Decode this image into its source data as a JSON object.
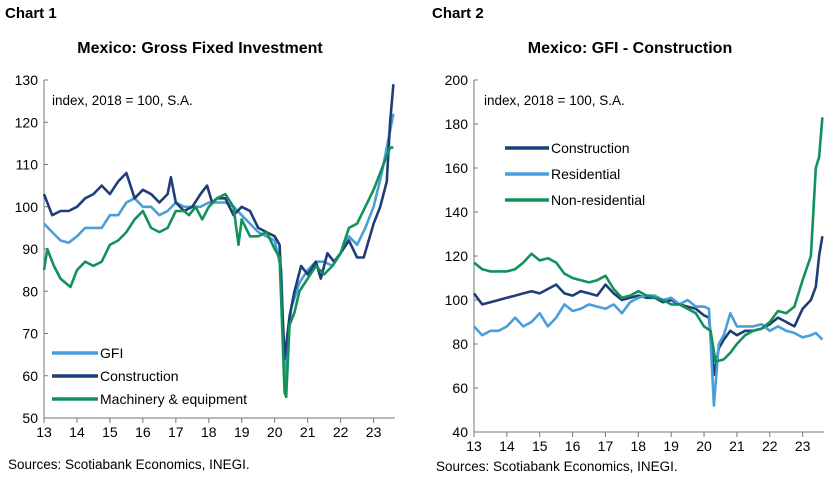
{
  "colors": {
    "light_blue": "#4a9fd8",
    "navy": "#1f3e78",
    "green": "#12925a"
  },
  "chart_data": [
    {
      "type": "line",
      "label": "Chart 1",
      "title": "Mexico: Gross Fixed Investment",
      "annotation": "index, 2018 = 100, S.A.",
      "source": "Sources: Scotiabank Economics, INEGI.",
      "xlim": [
        13,
        23.65
      ],
      "ylim": [
        50,
        130
      ],
      "yticks": [
        50,
        60,
        70,
        80,
        90,
        100,
        110,
        120,
        130
      ],
      "xticks": [
        "13",
        "14",
        "15",
        "16",
        "17",
        "18",
        "19",
        "20",
        "21",
        "22",
        "23"
      ],
      "legend": "bottom-left",
      "grid": false,
      "series": [
        {
          "name": "GFI",
          "color": "#4a9fd8",
          "x": [
            13,
            13.25,
            13.5,
            13.75,
            14,
            14.25,
            14.5,
            14.75,
            15,
            15.25,
            15.5,
            15.75,
            16,
            16.25,
            16.5,
            16.75,
            17,
            17.25,
            17.5,
            17.75,
            18,
            18.25,
            18.5,
            18.75,
            19,
            19.25,
            19.5,
            19.75,
            20,
            20.2,
            20.3,
            20.4,
            20.5,
            20.75,
            21,
            21.25,
            21.5,
            21.75,
            22,
            22.25,
            22.5,
            22.75,
            23,
            23.25,
            23.5,
            23.6
          ],
          "y": [
            96,
            94,
            92,
            91.5,
            93,
            95,
            95,
            95,
            98,
            98,
            101,
            102,
            100,
            100,
            98,
            99,
            101,
            100,
            100,
            100,
            101,
            101,
            101,
            100,
            98,
            96,
            94,
            93,
            92,
            85,
            57,
            68,
            76,
            82,
            85,
            87,
            87,
            86,
            89,
            93,
            91,
            95,
            100,
            108,
            118,
            122
          ]
        },
        {
          "name": "Construction",
          "color": "#1f3e78",
          "x": [
            13,
            13.25,
            13.5,
            13.75,
            14,
            14.25,
            14.5,
            14.75,
            15,
            15.25,
            15.5,
            15.75,
            16,
            16.25,
            16.5,
            16.75,
            16.85,
            17,
            17.25,
            17.5,
            17.75,
            17.95,
            18.1,
            18.25,
            18.5,
            18.75,
            19,
            19.25,
            19.5,
            19.75,
            20,
            20.15,
            20.3,
            20.45,
            20.6,
            20.8,
            21,
            21.25,
            21.4,
            21.6,
            21.8,
            22,
            22.25,
            22.5,
            22.7,
            23,
            23.2,
            23.4,
            23.5,
            23.6
          ],
          "y": [
            103,
            98,
            99,
            99,
            100,
            102,
            103,
            105,
            103,
            106,
            108,
            102,
            104,
            103,
            101,
            103,
            107,
            101,
            99,
            100,
            103,
            105,
            101,
            102,
            102,
            98,
            100,
            99,
            95,
            94,
            93,
            91,
            64,
            74,
            80,
            86,
            84,
            87,
            83,
            89,
            87,
            89,
            92,
            88,
            88,
            96,
            100,
            106,
            120,
            129
          ]
        },
        {
          "name": "Machinery & equipment",
          "color": "#12925a",
          "x": [
            13,
            13.1,
            13.3,
            13.5,
            13.8,
            14,
            14.25,
            14.5,
            14.75,
            15,
            15.25,
            15.5,
            15.75,
            16,
            16.25,
            16.5,
            16.75,
            17,
            17.25,
            17.4,
            17.6,
            17.8,
            18,
            18.25,
            18.5,
            18.75,
            18.9,
            19,
            19.25,
            19.5,
            19.75,
            20,
            20.15,
            20.3,
            20.35,
            20.45,
            20.6,
            20.75,
            21,
            21.25,
            21.5,
            21.75,
            22,
            22.25,
            22.5,
            22.75,
            23,
            23.25,
            23.5,
            23.6
          ],
          "y": [
            85,
            90,
            86,
            83,
            81,
            85,
            87,
            86,
            87,
            91,
            92,
            94,
            97,
            99,
            95,
            94,
            95,
            99,
            99,
            98,
            100,
            97,
            100,
            102,
            103,
            100,
            91,
            97,
            93,
            93,
            94,
            90,
            88,
            56,
            55,
            72,
            75,
            80,
            83,
            86,
            84,
            86,
            89,
            95,
            96,
            100,
            104,
            109,
            114,
            114
          ]
        }
      ]
    },
    {
      "type": "line",
      "label": "Chart 2",
      "title": "Mexico: GFI - Construction",
      "annotation": "index, 2018 = 100, S.A.",
      "source": "Sources: Scotiabank Economics, INEGI.",
      "xlim": [
        13,
        23.65
      ],
      "ylim": [
        40,
        200
      ],
      "yticks": [
        40,
        60,
        80,
        100,
        120,
        140,
        160,
        180,
        200
      ],
      "xticks": [
        "13",
        "14",
        "15",
        "16",
        "17",
        "18",
        "19",
        "20",
        "21",
        "22",
        "23"
      ],
      "legend": "top-left",
      "grid": false,
      "series": [
        {
          "name": "Construction",
          "color": "#1f3e78",
          "x": [
            13,
            13.25,
            13.5,
            13.75,
            14,
            14.25,
            14.5,
            14.75,
            15,
            15.25,
            15.5,
            15.75,
            16,
            16.25,
            16.5,
            16.75,
            17,
            17.25,
            17.5,
            17.75,
            18,
            18.25,
            18.5,
            18.75,
            19,
            19.25,
            19.5,
            19.75,
            20,
            20.15,
            20.3,
            20.45,
            20.6,
            20.8,
            21,
            21.25,
            21.5,
            21.75,
            22,
            22.25,
            22.5,
            22.75,
            23,
            23.25,
            23.4,
            23.5,
            23.6
          ],
          "y": [
            103,
            98,
            99,
            100,
            101,
            102,
            103,
            104,
            103,
            105,
            107,
            103,
            102,
            104,
            103,
            102,
            107,
            103,
            100,
            101,
            102,
            101,
            101,
            99,
            100,
            98,
            97,
            96,
            93,
            92,
            66,
            78,
            82,
            86,
            84,
            86,
            86,
            87,
            89,
            92,
            90,
            88,
            96,
            100,
            106,
            120,
            129
          ]
        },
        {
          "name": "Residential",
          "color": "#4a9fd8",
          "x": [
            13,
            13.25,
            13.5,
            13.75,
            14,
            14.25,
            14.5,
            14.75,
            15,
            15.25,
            15.5,
            15.75,
            16,
            16.25,
            16.5,
            16.75,
            17,
            17.25,
            17.5,
            17.75,
            18,
            18.25,
            18.5,
            18.75,
            19,
            19.25,
            19.5,
            19.75,
            20,
            20.15,
            20.3,
            20.45,
            20.6,
            20.8,
            21,
            21.25,
            21.5,
            21.75,
            22,
            22.25,
            22.5,
            22.75,
            23,
            23.25,
            23.4,
            23.6
          ],
          "y": [
            88,
            84,
            86,
            86,
            88,
            92,
            88,
            90,
            94,
            88,
            92,
            98,
            95,
            96,
            98,
            97,
            96,
            98,
            94,
            99,
            101,
            102,
            102,
            100,
            101,
            98,
            100,
            97,
            97,
            96,
            52,
            80,
            84,
            94,
            88,
            88,
            88,
            89,
            86,
            88,
            86,
            85,
            83,
            84,
            85,
            82
          ]
        },
        {
          "name": "Non-residential",
          "color": "#12925a",
          "x": [
            13,
            13.25,
            13.5,
            13.75,
            14,
            14.25,
            14.5,
            14.75,
            15,
            15.25,
            15.5,
            15.75,
            16,
            16.25,
            16.5,
            16.75,
            17,
            17.25,
            17.5,
            17.75,
            18,
            18.25,
            18.5,
            18.75,
            19,
            19.25,
            19.5,
            19.75,
            20,
            20.2,
            20.35,
            20.6,
            20.8,
            21,
            21.25,
            21.5,
            21.75,
            22,
            22.25,
            22.5,
            22.75,
            23,
            23.25,
            23.4,
            23.5,
            23.6
          ],
          "y": [
            117,
            114,
            113,
            113,
            113,
            114,
            117,
            121,
            118,
            119,
            117,
            112,
            110,
            109,
            108,
            109,
            111,
            105,
            101,
            102,
            104,
            102,
            101,
            100,
            98,
            98,
            96,
            94,
            88,
            86,
            72,
            73,
            76,
            80,
            84,
            86,
            87,
            90,
            95,
            94,
            97,
            109,
            120,
            160,
            165,
            183
          ]
        }
      ]
    }
  ]
}
